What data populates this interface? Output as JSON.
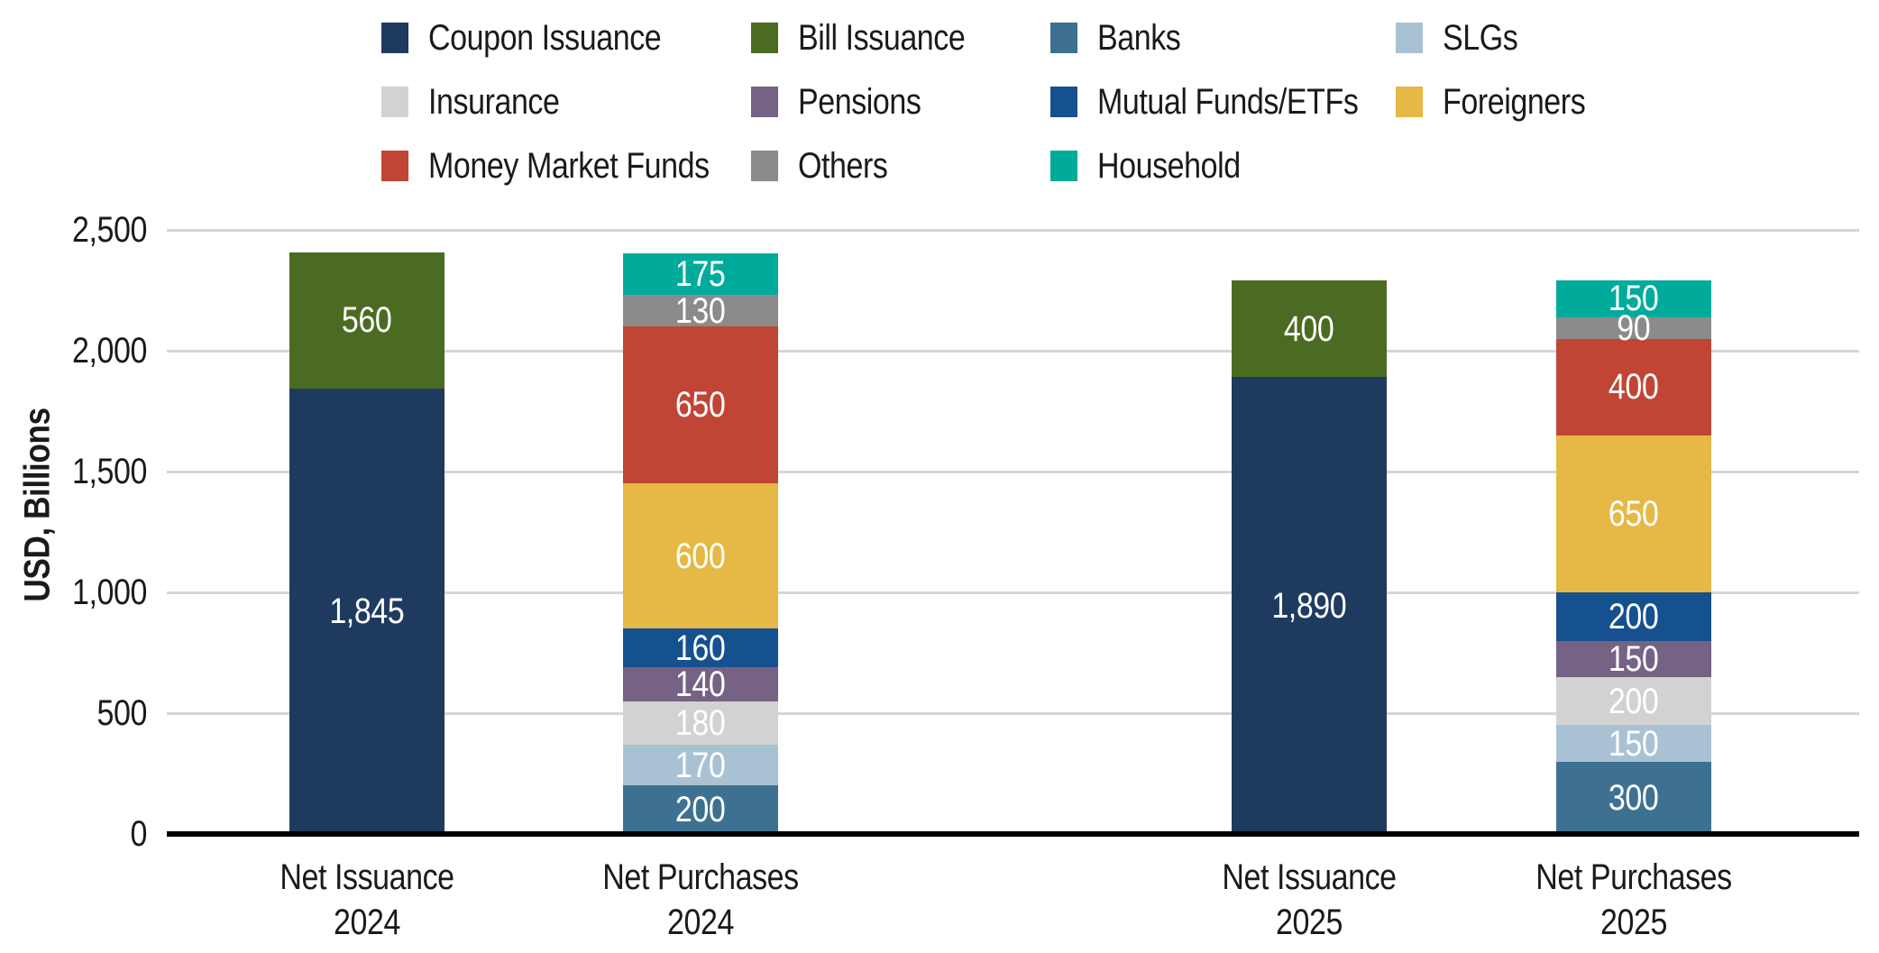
{
  "chart_data": {
    "type": "bar",
    "stacked": true,
    "title": "",
    "xlabel": "",
    "ylabel": "USD, Billions",
    "ylim": [
      0,
      2500
    ],
    "yticks": [
      0,
      500,
      1000,
      1500,
      2000,
      2500
    ],
    "grid": "horizontal",
    "legend_position": "top",
    "legend": [
      "Coupon Issuance",
      "Bill Issuance",
      "Banks",
      "SLGs",
      "Insurance",
      "Pensions",
      "Mutual Funds/ETFs",
      "Foreigners",
      "Money Market Funds",
      "Others",
      "Household"
    ],
    "colors": {
      "Coupon Issuance": "#1f3a5f",
      "Bill Issuance": "#4c6b22",
      "Banks": "#3e7191",
      "SLGs": "#a9c2d3",
      "Insurance": "#d2d2d2",
      "Pensions": "#756284",
      "Mutual Funds/ETFs": "#15508f",
      "Foreigners": "#e6b845",
      "Money Market Funds": "#c04534",
      "Others": "#8b8b8b",
      "Household": "#00ab9b"
    },
    "categories": [
      "Net Issuance 2024",
      "Net Purchases 2024",
      "Net Issuance 2025",
      "Net Purchases 2025"
    ],
    "category_lines": [
      [
        "Net Issuance",
        "2024"
      ],
      [
        "Net Purchases",
        "2024"
      ],
      [
        "Net Issuance",
        "2025"
      ],
      [
        "Net Purchases",
        "2025"
      ]
    ],
    "bars": [
      {
        "category": "Net Issuance 2024",
        "segments": [
          {
            "name": "Coupon Issuance",
            "value": 1845,
            "label": "1,845"
          },
          {
            "name": "Bill Issuance",
            "value": 560,
            "label": "560"
          }
        ]
      },
      {
        "category": "Net Purchases 2024",
        "segments": [
          {
            "name": "Banks",
            "value": 200,
            "label": "200"
          },
          {
            "name": "SLGs",
            "value": 170,
            "label": "170"
          },
          {
            "name": "Insurance",
            "value": 180,
            "label": "180"
          },
          {
            "name": "Pensions",
            "value": 140,
            "label": "140"
          },
          {
            "name": "Mutual Funds/ETFs",
            "value": 160,
            "label": "160"
          },
          {
            "name": "Foreigners",
            "value": 600,
            "label": "600"
          },
          {
            "name": "Money Market Funds",
            "value": 650,
            "label": "650"
          },
          {
            "name": "Others",
            "value": 130,
            "label": "130"
          },
          {
            "name": "Household",
            "value": 175,
            "label": "175"
          }
        ]
      },
      {
        "category": "Net Issuance 2025",
        "segments": [
          {
            "name": "Coupon Issuance",
            "value": 1890,
            "label": "1,890"
          },
          {
            "name": "Bill Issuance",
            "value": 400,
            "label": "400"
          }
        ]
      },
      {
        "category": "Net Purchases 2025",
        "segments": [
          {
            "name": "Banks",
            "value": 300,
            "label": "300"
          },
          {
            "name": "SLGs",
            "value": 150,
            "label": "150"
          },
          {
            "name": "Insurance",
            "value": 200,
            "label": "200"
          },
          {
            "name": "Pensions",
            "value": 150,
            "label": "150"
          },
          {
            "name": "Mutual Funds/ETFs",
            "value": 200,
            "label": "200"
          },
          {
            "name": "Foreigners",
            "value": 650,
            "label": "650"
          },
          {
            "name": "Money Market Funds",
            "value": 400,
            "label": "400"
          },
          {
            "name": "Others",
            "value": 90,
            "label": "90"
          },
          {
            "name": "Household",
            "value": 150,
            "label": "150"
          }
        ]
      }
    ]
  }
}
